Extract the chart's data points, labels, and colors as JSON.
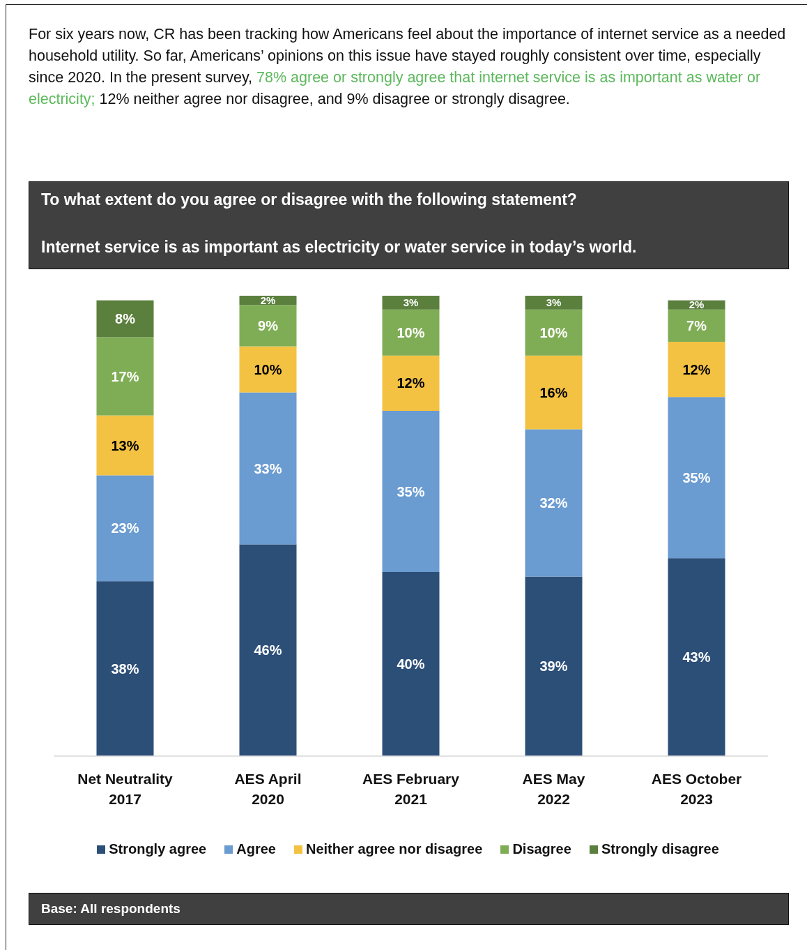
{
  "chart_data": {
    "type": "bar",
    "stacked": true,
    "title": "To what extent do you agree or disagree with the following statement?",
    "subtitle": "Internet service is as important as electricity or water service in today’s world.",
    "annotations": [
      "For six years now, CR has been tracking how Americans feel about the importance of internet service as a needed household utility. So far, Americans’ opinions on this issue have stayed roughly consistent over time, especially since 2020. In the present survey, ",
      "78% agree or strongly agree that internet service is as important as water or electricity;",
      " 12% neither agree nor disagree, and 9% disagree or strongly disagree.",
      "Base: All respondents"
    ],
    "categories": [
      "Net Neutrality 2017",
      "AES April 2020",
      "AES February 2021",
      "AES May 2022",
      "AES October 2023"
    ],
    "legend": "bottom",
    "series": [
      {
        "name": "Strongly agree",
        "color": "#2c4f78",
        "values": [
          38,
          46,
          40,
          39,
          43
        ],
        "value_labels": [
          "38%",
          "46%",
          "40%",
          "39%",
          "43%"
        ]
      },
      {
        "name": "Agree",
        "color": "#6a9bd1",
        "values": [
          23,
          33,
          35,
          32,
          35
        ],
        "value_labels": [
          "23%",
          "33%",
          "35%",
          "32%",
          "35%"
        ]
      },
      {
        "name": "Neither agree nor disagree",
        "color": "#f4c242",
        "values": [
          13,
          10,
          12,
          16,
          12
        ],
        "value_labels": [
          "13%",
          "10%",
          "12%",
          "16%",
          "12%"
        ]
      },
      {
        "name": "Disagree",
        "color": "#7fad55",
        "values": [
          17,
          9,
          10,
          10,
          7
        ],
        "value_labels": [
          "17%",
          "9%",
          "10%",
          "10%",
          "7%"
        ]
      },
      {
        "name": "Strongly disagree",
        "color": "#5b7f3d",
        "values": [
          8,
          2,
          3,
          3,
          2
        ],
        "value_labels": [
          "8%",
          "2%",
          "3%",
          "3%",
          "2%"
        ]
      }
    ]
  }
}
